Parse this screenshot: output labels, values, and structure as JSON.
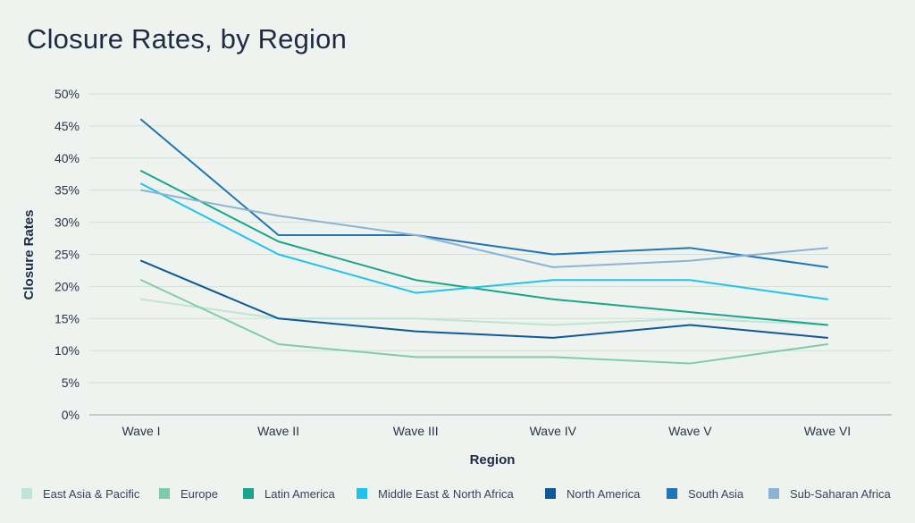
{
  "chart_data": {
    "type": "line",
    "title": "Closure Rates, by Region",
    "xlabel": "Region",
    "ylabel": "Closure Rates",
    "categories": [
      "Wave I",
      "Wave II",
      "Wave III",
      "Wave IV",
      "Wave V",
      "Wave VI"
    ],
    "yticks": [
      "0%",
      "5%",
      "10%",
      "15%",
      "20%",
      "25%",
      "30%",
      "35%",
      "40%",
      "45%",
      "50%"
    ],
    "ylim": [
      0,
      50
    ],
    "grid": true,
    "legend_position": "bottom",
    "series": [
      {
        "name": "East Asia & Pacific",
        "color": "#bfe3d6",
        "values": [
          18,
          15,
          15,
          14,
          15,
          14
        ]
      },
      {
        "name": "Europe",
        "color": "#7fcbb0",
        "values": [
          21,
          11,
          9,
          9,
          8,
          11
        ]
      },
      {
        "name": "Latin America",
        "color": "#17a58c",
        "values": [
          38,
          27,
          21,
          18,
          16,
          14
        ]
      },
      {
        "name": "Middle East & North Africa",
        "color": "#22c2ee",
        "values": [
          36,
          25,
          19,
          21,
          21,
          18
        ]
      },
      {
        "name": "North America",
        "color": "#0e5a96",
        "values": [
          24,
          15,
          13,
          12,
          14,
          12
        ]
      },
      {
        "name": "South Asia",
        "color": "#1f75b5",
        "values": [
          46,
          28,
          28,
          25,
          26,
          23
        ]
      },
      {
        "name": "Sub-Saharan Africa",
        "color": "#8cb3d4",
        "values": [
          35,
          31,
          28,
          23,
          24,
          26
        ]
      }
    ]
  }
}
